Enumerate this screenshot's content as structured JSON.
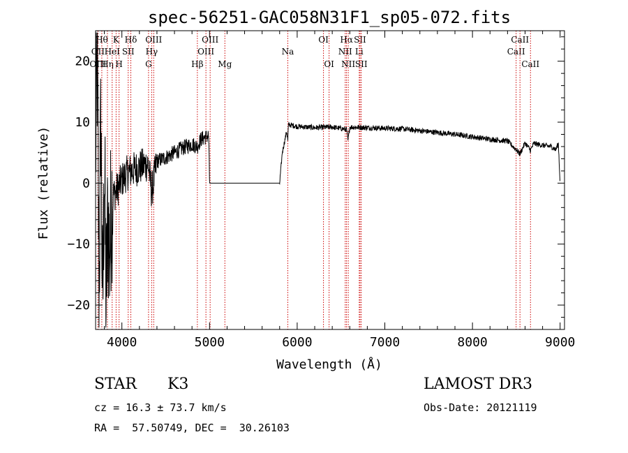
{
  "chart_data": {
    "type": "line",
    "title": "spec-56251-GAC058N31F1_sp05-072.fits",
    "xlabel": "Wavelength (Å)",
    "ylabel": "Flux (relative)",
    "xlim": [
      3700,
      9050
    ],
    "ylim": [
      -24,
      25
    ],
    "xticks": [
      4000,
      5000,
      6000,
      7000,
      8000,
      9000
    ],
    "yticks": [
      -20,
      -10,
      0,
      10,
      20
    ],
    "yticklabels": [
      "−20",
      "−10",
      "0",
      "10",
      "20"
    ],
    "grid": false,
    "series": [
      {
        "name": "flux",
        "anchors": [
          [
            3700,
            5
          ],
          [
            3720,
            20
          ],
          [
            3740,
            -18
          ],
          [
            3760,
            12
          ],
          [
            3780,
            -22
          ],
          [
            3800,
            4
          ],
          [
            3820,
            -20
          ],
          [
            3840,
            -5
          ],
          [
            3860,
            -12
          ],
          [
            3880,
            -3
          ],
          [
            3900,
            -2
          ],
          [
            3950,
            -1
          ],
          [
            4000,
            0.5
          ],
          [
            4050,
            1.5
          ],
          [
            4100,
            2.0
          ],
          [
            4150,
            2.3
          ],
          [
            4200,
            2.6
          ],
          [
            4300,
            3.2
          ],
          [
            4340,
            -1.5
          ],
          [
            4400,
            3.6
          ],
          [
            4500,
            4.2
          ],
          [
            4600,
            5.0
          ],
          [
            4700,
            5.8
          ],
          [
            4800,
            6.4
          ],
          [
            4861,
            6.0
          ],
          [
            4900,
            7.2
          ],
          [
            4990,
            7.8
          ],
          [
            5000,
            0
          ],
          [
            5800,
            0
          ],
          [
            5830,
            5
          ],
          [
            5880,
            8.5
          ],
          [
            5893,
            7.0
          ],
          [
            5900,
            9.6
          ],
          [
            6000,
            9.3
          ],
          [
            6200,
            9.1
          ],
          [
            6400,
            9.2
          ],
          [
            6563,
            8.8
          ],
          [
            6580,
            7.0
          ],
          [
            6600,
            9.2
          ],
          [
            6800,
            9.1
          ],
          [
            7000,
            9.0
          ],
          [
            7200,
            8.9
          ],
          [
            7400,
            8.6
          ],
          [
            7600,
            8.3
          ],
          [
            7800,
            8.0
          ],
          [
            8000,
            7.6
          ],
          [
            8200,
            7.2
          ],
          [
            8400,
            6.9
          ],
          [
            8498,
            5.5
          ],
          [
            8542,
            4.8
          ],
          [
            8600,
            6.6
          ],
          [
            8662,
            5.4
          ],
          [
            8700,
            6.5
          ],
          [
            8800,
            6.2
          ],
          [
            8900,
            6.0
          ],
          [
            8950,
            5.5
          ],
          [
            8980,
            6.5
          ],
          [
            9000,
            0
          ]
        ],
        "noise_segments": [
          {
            "from": 3700,
            "to": 3900,
            "amplitude": 14
          },
          {
            "from": 3900,
            "to": 4400,
            "amplitude": 3
          },
          {
            "from": 4400,
            "to": 5000,
            "amplitude": 1.3
          },
          {
            "from": 5800,
            "to": 9000,
            "amplitude": 0.45
          }
        ]
      }
    ],
    "lines": [
      {
        "label": "OII",
        "wave": 3727,
        "row": 1
      },
      {
        "label": "OIII",
        "wave": 3727,
        "row": 2
      },
      {
        "label": "Hθ",
        "wave": 3771,
        "row": 0
      },
      {
        "label": "Hη",
        "wave": 3835,
        "row": 2
      },
      {
        "label": "K",
        "wave": 3934,
        "row": 0
      },
      {
        "label": "H",
        "wave": 3968,
        "row": 2
      },
      {
        "label": "HeI",
        "wave": 3889,
        "row": 1
      },
      {
        "label": "SII",
        "wave": 4072,
        "row": 1
      },
      {
        "label": "Hδ",
        "wave": 4102,
        "row": 0
      },
      {
        "label": "G",
        "wave": 4304,
        "row": 2
      },
      {
        "label": "Hγ",
        "wave": 4340,
        "row": 1
      },
      {
        "label": "OIII",
        "wave": 4363,
        "row": 0
      },
      {
        "label": "Hβ",
        "wave": 4861,
        "row": 2
      },
      {
        "label": "OIII",
        "wave": 4959,
        "row": 1
      },
      {
        "label": "OIII",
        "wave": 5007,
        "row": 0
      },
      {
        "label": "Mg",
        "wave": 5175,
        "row": 2
      },
      {
        "label": "Na",
        "wave": 5893,
        "row": 1
      },
      {
        "label": "OI",
        "wave": 6300,
        "row": 0
      },
      {
        "label": "OI",
        "wave": 6364,
        "row": 2
      },
      {
        "label": "NII",
        "wave": 6548,
        "row": 1
      },
      {
        "label": "Hα",
        "wave": 6563,
        "row": 0
      },
      {
        "label": "NII",
        "wave": 6583,
        "row": 2
      },
      {
        "label": "Li",
        "wave": 6708,
        "row": 1
      },
      {
        "label": "SII",
        "wave": 6717,
        "row": 0
      },
      {
        "label": "SII",
        "wave": 6731,
        "row": 2
      },
      {
        "label": "CaII",
        "wave": 8498,
        "row": 1
      },
      {
        "label": "CaII",
        "wave": 8542,
        "row": 0
      },
      {
        "label": "CaII",
        "wave": 8662,
        "row": 2
      }
    ],
    "line_color": "#cc0000"
  },
  "info": {
    "class": "STAR",
    "subclass": "K3",
    "survey": "LAMOST DR3",
    "redshift": "cz = 16.3 ± 73.7 km/s",
    "obs_date": "Obs-Date: 20121119",
    "coords": "RA =  57.50749, DEC =  30.26103"
  }
}
